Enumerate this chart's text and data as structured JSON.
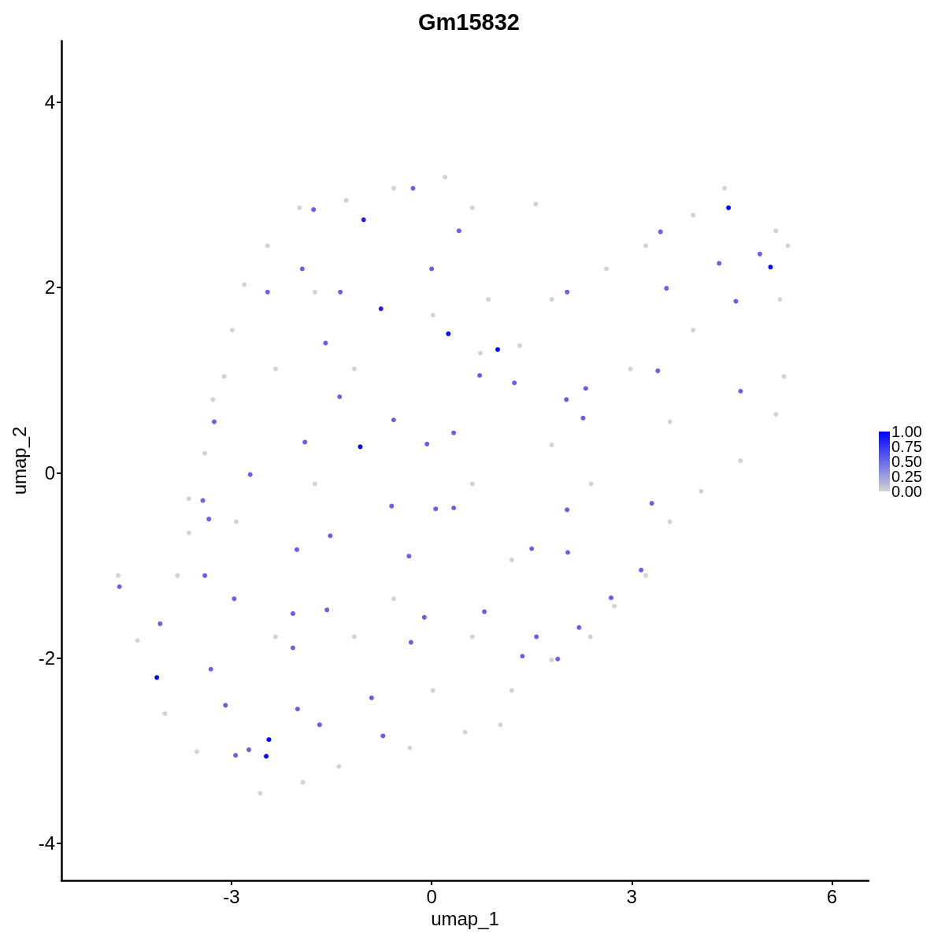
{
  "chart_data": {
    "type": "scatter",
    "title": "Gm15832",
    "xlabel": "umap_1",
    "ylabel": "umap_2",
    "xlim": [
      -5.55,
      6.55
    ],
    "ylim": [
      -4.4,
      4.66
    ],
    "xticks": [
      -3,
      0,
      3,
      6
    ],
    "yticks": [
      -4,
      -2,
      0,
      2,
      4
    ],
    "grid": false,
    "marker": "circle",
    "clim": [
      0,
      1
    ],
    "cticks": [
      {
        "value": 0,
        "label": "0.00"
      },
      {
        "value": 0.25,
        "label": "0.25"
      },
      {
        "value": 0.5,
        "label": "0.50"
      },
      {
        "value": 0.75,
        "label": "0.75"
      },
      {
        "value": 1,
        "label": "1.00"
      }
    ],
    "colors": [
      "#2a1af9",
      "#0000ff",
      "#0000ff",
      "#2a1af9",
      "#0000ff",
      "#0000ff",
      "#0000ff",
      "#0000ff",
      "#0000ff",
      "#0000ff",
      "#7b55f0",
      "#7b55f0",
      "#7b55f0",
      "#7b55f0",
      "#7b55f0",
      "#7b55f0",
      "#7b55f0",
      "#7b55f0",
      "#7b55f0",
      "#7b55f0",
      "#7b55f0",
      "#7b55f0",
      "#7b55f0",
      "#7b55f0",
      "#7b55f0",
      "#7b55f0",
      "#7b55f0",
      "#7b55f0",
      "#7b55f0",
      "#7b55f0",
      "#7b55f0",
      "#7b55f0",
      "#7b55f0",
      "#7b55f0",
      "#7b55f0",
      "#7b55f0",
      "#7b55f0",
      "#7b55f0",
      "#7b55f0",
      "#7b55f0",
      "#7b55f0",
      "#7b55f0",
      "#7b55f0",
      "#7b55f0",
      "#7b55f0",
      "#7b55f0",
      "#7b55f0",
      "#7b55f0",
      "#7b55f0",
      "#7b55f0",
      "#7b55f0",
      "#7b55f0",
      "#7b55f0",
      "#7b55f0",
      "#7b55f0",
      "#7b55f0",
      "#7b55f0",
      "#7b55f0",
      "#7b55f0",
      "#7b55f0",
      "#7b55f0",
      "#7b55f0",
      "#7b55f0",
      "#7b55f0",
      "#7b55f0",
      "#7b55f0",
      "#7b55f0",
      "#7b55f0",
      "#7b55f0",
      "#7b55f0",
      "#7b55f0",
      "#7b55f0",
      "#7b55f0",
      "#7b55f0",
      "#d3d3d3",
      "#d3d3d3",
      "#d3d3d3",
      "#d3d3d3",
      "#d3d3d3",
      "#d3d3d3",
      "#d3d3d3",
      "#d3d3d3",
      "#d3d3d3",
      "#d3d3d3",
      "#d3d3d3",
      "#d3d3d3",
      "#d3d3d3",
      "#d3d3d3",
      "#d3d3d3",
      "#d3d3d3",
      "#d3d3d3",
      "#d3d3d3",
      "#d3d3d3",
      "#d3d3d3",
      "#d3d3d3",
      "#d3d3d3",
      "#d3d3d3",
      "#d3d3d3",
      "#d3d3d3",
      "#d3d3d3",
      "#d3d3d3",
      "#d3d3d3",
      "#d3d3d3",
      "#d3d3d3",
      "#d3d3d3",
      "#d3d3d3",
      "#d3d3d3",
      "#d3d3d3",
      "#d3d3d3",
      "#d3d3d3",
      "#d3d3d3",
      "#d3d3d3",
      "#d3d3d3",
      "#d3d3d3",
      "#d3d3d3",
      "#d3d3d3",
      "#d3d3d3",
      "#d3d3d3",
      "#d3d3d3",
      "#d3d3d3",
      "#d3d3d3",
      "#d3d3d3",
      "#d3d3d3",
      "#d3d3d3",
      "#d3d3d3",
      "#d3d3d3",
      "#d3d3d3",
      "#d3d3d3",
      "#d3d3d3",
      "#d3d3d3",
      "#d3d3d3",
      "#d3d3d3",
      "#d3d3d3",
      "#d3d3d3",
      "#d3d3d3",
      "#d3d3d3",
      "#d3d3d3",
      "#d3d3d3"
    ],
    "x": [
      -1.02,
      4.45,
      5.08,
      -0.76,
      0.25,
      0.99,
      -1.07,
      -4.12,
      -2.44,
      -2.48,
      -1.77,
      -0.28,
      0.41,
      3.43,
      4.31,
      4.92,
      4.56,
      2.03,
      -1.94,
      -2.46,
      -1.37,
      -1.59,
      0,
      0.72,
      1.24,
      2.02,
      2.31,
      3.39,
      3.52,
      -3.26,
      -2.72,
      -1.9,
      -0.07,
      0.33,
      -0.57,
      -1.38,
      -3.43,
      -3.34,
      -2.02,
      -1.52,
      -0.6,
      0.06,
      0.33,
      2.03,
      2.04,
      1.5,
      3.3,
      3.14,
      2.69,
      -3.4,
      -2.96,
      -4.07,
      -3.31,
      -2.08,
      -2.08,
      -1.57,
      -0.34,
      -0.11,
      -0.31,
      0.79,
      1.36,
      1.57,
      1.89,
      -3.09,
      -2.74,
      -2.01,
      -1.68,
      -0.9,
      -0.73,
      -2.94,
      -4.68,
      2.27,
      4.63,
      2.21,
      -4.7,
      -4.41,
      -4,
      -3.52,
      -2.57,
      -1.93,
      -1.39,
      -0.33,
      0.5,
      1.03,
      1.2,
      1.8,
      2.38,
      2.74,
      3.21,
      3.57,
      4.04,
      4.63,
      5.16,
      5.28,
      5.22,
      5.34,
      5.16,
      4.39,
      3.92,
      3.21,
      2.62,
      1.8,
      1.32,
      0.73,
      0.85,
      1.56,
      0.61,
      0.2,
      -0.57,
      -1.28,
      -1.98,
      -2.46,
      -2.81,
      -2.99,
      -3.11,
      -3.28,
      -3.4,
      -3.64,
      -3.64,
      -3.81,
      -1.75,
      0.61,
      -1.16,
      1.8,
      2.98,
      3.92,
      -0.57,
      0.61,
      -2.34,
      -2.93,
      1.2,
      2.39,
      3.57,
      -1.75,
      0.02,
      -2.34,
      -1.16,
      0.02
    ],
    "values": [
      2.73,
      2.86,
      2.22,
      1.77,
      1.5,
      1.33,
      0.28,
      -2.21,
      -2.88,
      -3.06,
      2.84,
      3.07,
      2.61,
      2.6,
      2.26,
      2.36,
      1.85,
      1.95,
      2.2,
      1.95,
      1.95,
      1.4,
      2.2,
      1.05,
      0.97,
      0.79,
      0.91,
      1.1,
      1.99,
      0.55,
      -0.02,
      0.33,
      0.31,
      0.43,
      0.57,
      0.82,
      -0.3,
      -0.5,
      -0.83,
      -0.68,
      -0.36,
      -0.39,
      -0.38,
      -0.4,
      -0.86,
      -0.82,
      -0.33,
      -1.05,
      -1.35,
      -1.11,
      -1.36,
      -1.63,
      -2.12,
      -1.52,
      -1.89,
      -1.48,
      -0.9,
      -1.56,
      -1.83,
      -1.5,
      -1.98,
      -1.77,
      -2.01,
      -2.51,
      -2.99,
      -2.55,
      -2.72,
      -2.43,
      -2.84,
      -3.05,
      -1.23,
      0.59,
      0.88,
      -1.67,
      -1.11,
      -1.81,
      -2.6,
      -3.01,
      -3.46,
      -3.34,
      -3.17,
      -2.97,
      -2.8,
      -2.72,
      -2.35,
      -2.02,
      -1.77,
      -1.44,
      -1.11,
      -0.53,
      -0.2,
      0.13,
      0.63,
      1.04,
      1.87,
      2.45,
      2.61,
      3.07,
      2.78,
      2.45,
      2.2,
      1.87,
      1.37,
      1.29,
      1.87,
      2.9,
      2.86,
      3.19,
      3.07,
      2.94,
      2.86,
      2.45,
      2.03,
      1.54,
      1.04,
      0.79,
      0.21,
      -0.28,
      -0.65,
      -1.11,
      -0.12,
      -0.12,
      1.12,
      0.3,
      1.12,
      1.54,
      -1.36,
      -1.77,
      -1.77,
      -0.53,
      -0.94,
      -0.12,
      0.55,
      1.95,
      1.7,
      1.12,
      -1.77,
      -2.35
    ],
    "cvalues": [
      0.9,
      1,
      1,
      0.9,
      1,
      1,
      1,
      1,
      1,
      1,
      0.5,
      0.5,
      0.5,
      0.5,
      0.5,
      0.5,
      0.5,
      0.5,
      0.5,
      0.5,
      0.5,
      0.5,
      0.5,
      0.5,
      0.5,
      0.5,
      0.5,
      0.5,
      0.5,
      0.5,
      0.5,
      0.5,
      0.5,
      0.5,
      0.5,
      0.5,
      0.5,
      0.5,
      0.5,
      0.5,
      0.5,
      0.5,
      0.5,
      0.5,
      0.5,
      0.5,
      0.5,
      0.5,
      0.5,
      0.5,
      0.5,
      0.5,
      0.5,
      0.5,
      0.5,
      0.5,
      0.5,
      0.5,
      0.5,
      0.5,
      0.5,
      0.5,
      0.5,
      0.5,
      0.5,
      0.5,
      0.5,
      0.5,
      0.5,
      0.5,
      0.5,
      0.5,
      0.5,
      0.5,
      0,
      0,
      0,
      0,
      0,
      0,
      0,
      0,
      0,
      0,
      0,
      0,
      0,
      0,
      0,
      0,
      0,
      0,
      0,
      0,
      0,
      0,
      0,
      0,
      0,
      0,
      0,
      0,
      0,
      0,
      0,
      0,
      0,
      0,
      0,
      0,
      0,
      0,
      0,
      0,
      0,
      0,
      0,
      0,
      0,
      0,
      0,
      0,
      0,
      0,
      0,
      0,
      0,
      0,
      0,
      0,
      0,
      0,
      0,
      0,
      0,
      0,
      0,
      0
    ]
  }
}
